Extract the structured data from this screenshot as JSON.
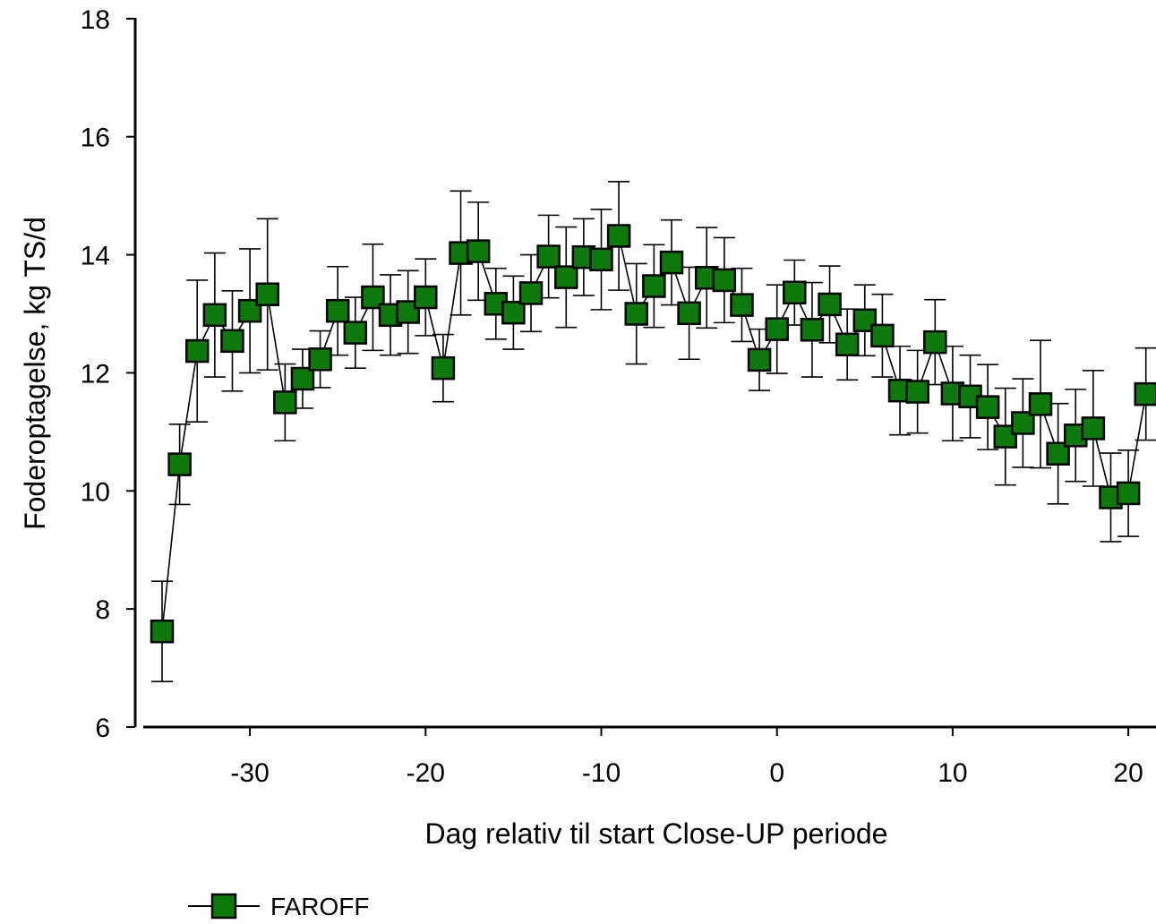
{
  "chart_data": {
    "type": "line",
    "xlabel": "Dag relativ til start Close-UP periode",
    "ylabel": "Foderoptagelse, kg TS/d",
    "xlim": [
      -36.5,
      21
    ],
    "ylim": [
      6,
      18
    ],
    "xticks": [
      -30,
      -20,
      -10,
      0,
      10,
      20
    ],
    "yticks": [
      6,
      8,
      10,
      12,
      14,
      16,
      18
    ],
    "grid": false,
    "legend_position": "bottom-left",
    "colors": {
      "marker_fill": "#0b7a0b",
      "marker_edge": "#000000",
      "line": "#000000"
    },
    "series": [
      {
        "name": "FAROFF",
        "x": [
          -35,
          -34,
          -33,
          -32,
          -31,
          -30,
          -29,
          -28,
          -27,
          -26,
          -25,
          -24,
          -23,
          -22,
          -21,
          -20,
          -19,
          -18,
          -17,
          -16,
          -15,
          -14,
          -13,
          -12,
          -11,
          -10,
          -9,
          -8,
          -7,
          -6,
          -5,
          -4,
          -3,
          -2,
          -1,
          0,
          1,
          2,
          3,
          4,
          5,
          6,
          7,
          8,
          9,
          10,
          11,
          12,
          13,
          14,
          15,
          16,
          17,
          18,
          19,
          20,
          21
        ],
        "y": [
          7.62,
          10.45,
          12.37,
          12.98,
          12.54,
          13.05,
          13.33,
          11.5,
          11.9,
          12.23,
          13.05,
          12.68,
          13.28,
          12.98,
          13.03,
          13.28,
          12.08,
          14.03,
          14.06,
          13.17,
          13.02,
          13.35,
          13.97,
          13.62,
          13.96,
          13.92,
          14.32,
          13.0,
          13.47,
          13.87,
          13.01,
          13.61,
          13.57,
          13.15,
          12.22,
          12.74,
          13.36,
          12.73,
          13.16,
          12.48,
          12.89,
          12.63,
          11.7,
          11.68,
          12.52,
          11.65,
          11.6,
          11.42,
          10.92,
          11.15,
          11.47,
          10.63,
          10.94,
          11.06,
          9.89,
          9.96,
          11.64
        ],
        "error": [
          0.85,
          0.68,
          1.2,
          1.05,
          0.85,
          1.05,
          1.28,
          0.65,
          0.5,
          0.48,
          0.75,
          0.6,
          0.9,
          0.68,
          0.7,
          0.65,
          0.57,
          1.05,
          0.83,
          0.6,
          0.62,
          0.65,
          0.7,
          0.85,
          0.65,
          0.85,
          0.92,
          0.85,
          0.7,
          0.72,
          0.78,
          0.85,
          0.72,
          0.62,
          0.52,
          0.75,
          0.55,
          0.8,
          0.65,
          0.6,
          0.6,
          0.7,
          0.75,
          0.7,
          0.72,
          0.8,
          0.7,
          0.72,
          0.82,
          0.75,
          1.08,
          0.85,
          0.78,
          0.98,
          0.75,
          0.73,
          0.78
        ]
      }
    ]
  }
}
